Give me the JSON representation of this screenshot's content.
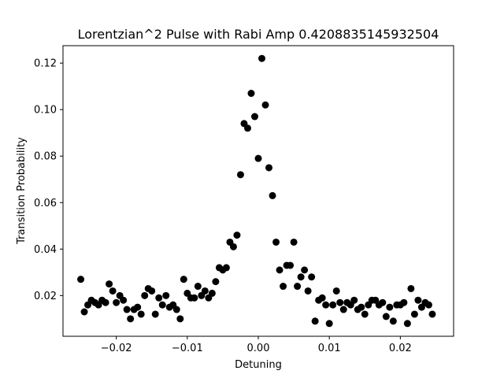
{
  "chart_data": {
    "type": "scatter",
    "title": "Lorentzian^2 Pulse with Rabi Amp 0.4208835145932504",
    "xlabel": "Detuning",
    "ylabel": "Transition Probability",
    "xlim": [
      -0.0275,
      0.0275
    ],
    "ylim": [
      0.0025,
      0.1275
    ],
    "x_ticks": [
      -0.02,
      -0.01,
      0.0,
      0.01,
      0.02
    ],
    "x_tick_labels": [
      "−0.02",
      "−0.01",
      "0.00",
      "0.01",
      "0.02"
    ],
    "y_ticks": [
      0.02,
      0.04,
      0.06,
      0.08,
      0.1,
      0.12
    ],
    "y_tick_labels": [
      "0.02",
      "0.04",
      "0.06",
      "0.08",
      "0.10",
      "0.12"
    ],
    "grid": false,
    "marker_color": "#000000",
    "points": [
      [
        -0.025,
        0.027
      ],
      [
        -0.0245,
        0.013
      ],
      [
        -0.024,
        0.016
      ],
      [
        -0.0235,
        0.018
      ],
      [
        -0.023,
        0.017
      ],
      [
        -0.0225,
        0.016
      ],
      [
        -0.022,
        0.018
      ],
      [
        -0.0215,
        0.017
      ],
      [
        -0.021,
        0.025
      ],
      [
        -0.0205,
        0.022
      ],
      [
        -0.02,
        0.017
      ],
      [
        -0.0195,
        0.02
      ],
      [
        -0.019,
        0.018
      ],
      [
        -0.0185,
        0.014
      ],
      [
        -0.018,
        0.01
      ],
      [
        -0.0175,
        0.014
      ],
      [
        -0.017,
        0.015
      ],
      [
        -0.0165,
        0.012
      ],
      [
        -0.016,
        0.02
      ],
      [
        -0.0155,
        0.023
      ],
      [
        -0.015,
        0.022
      ],
      [
        -0.0145,
        0.012
      ],
      [
        -0.014,
        0.019
      ],
      [
        -0.0135,
        0.016
      ],
      [
        -0.013,
        0.02
      ],
      [
        -0.0125,
        0.015
      ],
      [
        -0.012,
        0.016
      ],
      [
        -0.0115,
        0.014
      ],
      [
        -0.011,
        0.01
      ],
      [
        -0.0105,
        0.027
      ],
      [
        -0.01,
        0.021
      ],
      [
        -0.0095,
        0.019
      ],
      [
        -0.009,
        0.019
      ],
      [
        -0.0085,
        0.024
      ],
      [
        -0.008,
        0.02
      ],
      [
        -0.0075,
        0.022
      ],
      [
        -0.007,
        0.019
      ],
      [
        -0.0065,
        0.021
      ],
      [
        -0.006,
        0.026
      ],
      [
        -0.0055,
        0.032
      ],
      [
        -0.005,
        0.031
      ],
      [
        -0.0045,
        0.032
      ],
      [
        -0.004,
        0.043
      ],
      [
        -0.0035,
        0.041
      ],
      [
        -0.003,
        0.046
      ],
      [
        -0.0025,
        0.072
      ],
      [
        -0.002,
        0.094
      ],
      [
        -0.0015,
        0.092
      ],
      [
        -0.001,
        0.107
      ],
      [
        -0.0005,
        0.097
      ],
      [
        0.0,
        0.079
      ],
      [
        0.0005,
        0.122
      ],
      [
        0.001,
        0.102
      ],
      [
        0.0015,
        0.075
      ],
      [
        0.002,
        0.063
      ],
      [
        0.0025,
        0.043
      ],
      [
        0.003,
        0.031
      ],
      [
        0.0035,
        0.024
      ],
      [
        0.004,
        0.033
      ],
      [
        0.0045,
        0.033
      ],
      [
        0.005,
        0.043
      ],
      [
        0.0055,
        0.024
      ],
      [
        0.006,
        0.028
      ],
      [
        0.0065,
        0.031
      ],
      [
        0.007,
        0.022
      ],
      [
        0.0075,
        0.028
      ],
      [
        0.008,
        0.009
      ],
      [
        0.0085,
        0.018
      ],
      [
        0.009,
        0.019
      ],
      [
        0.0095,
        0.016
      ],
      [
        0.01,
        0.008
      ],
      [
        0.0105,
        0.016
      ],
      [
        0.011,
        0.022
      ],
      [
        0.0115,
        0.017
      ],
      [
        0.012,
        0.014
      ],
      [
        0.0125,
        0.017
      ],
      [
        0.013,
        0.016
      ],
      [
        0.0135,
        0.018
      ],
      [
        0.014,
        0.014
      ],
      [
        0.0145,
        0.015
      ],
      [
        0.015,
        0.012
      ],
      [
        0.0155,
        0.016
      ],
      [
        0.016,
        0.018
      ],
      [
        0.0165,
        0.018
      ],
      [
        0.017,
        0.016
      ],
      [
        0.0175,
        0.017
      ],
      [
        0.018,
        0.011
      ],
      [
        0.0185,
        0.015
      ],
      [
        0.019,
        0.009
      ],
      [
        0.0195,
        0.016
      ],
      [
        0.02,
        0.016
      ],
      [
        0.0205,
        0.017
      ],
      [
        0.021,
        0.008
      ],
      [
        0.0215,
        0.023
      ],
      [
        0.022,
        0.012
      ],
      [
        0.0225,
        0.018
      ],
      [
        0.023,
        0.015
      ],
      [
        0.0235,
        0.017
      ],
      [
        0.024,
        0.016
      ],
      [
        0.0245,
        0.012
      ]
    ]
  }
}
